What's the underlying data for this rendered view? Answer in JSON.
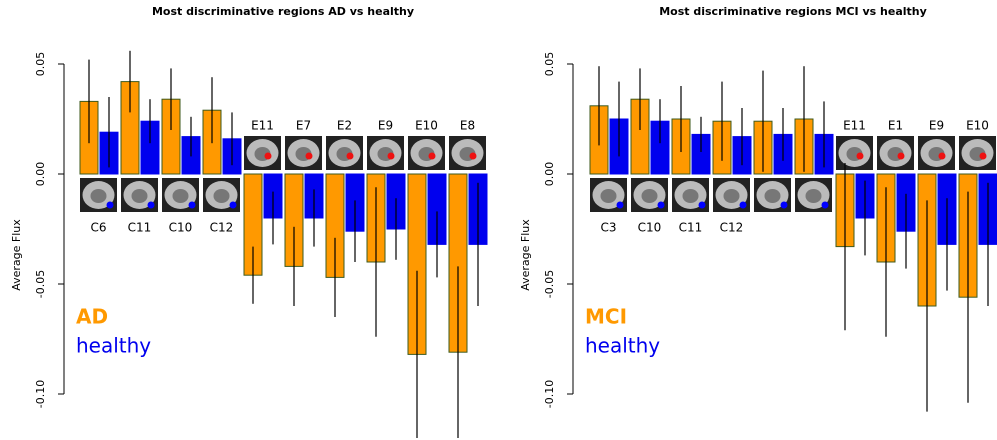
{
  "chart_data": [
    {
      "type": "bar",
      "title": "Most discriminative regions AD vs healthy",
      "ylabel": "Average Flux",
      "categories": [
        "C6",
        "C11",
        "C10",
        "C12",
        "E11",
        "E7",
        "E2",
        "E9",
        "E10",
        "E8"
      ],
      "series": [
        {
          "name": "AD",
          "color": "#ff9900",
          "values": [
            0.033,
            0.042,
            0.034,
            0.029,
            -0.046,
            -0.042,
            -0.047,
            -0.04,
            -0.082,
            -0.081
          ],
          "errors": [
            0.019,
            0.014,
            0.014,
            0.015,
            0.013,
            0.018,
            0.018,
            0.034,
            0.038,
            0.039
          ]
        },
        {
          "name": "healthy",
          "color": "#0000ee",
          "values": [
            0.019,
            0.024,
            0.017,
            0.016,
            -0.02,
            -0.02,
            -0.026,
            -0.025,
            -0.032,
            -0.032
          ],
          "errors": [
            0.016,
            0.01,
            0.009,
            0.012,
            0.012,
            0.013,
            0.014,
            0.014,
            0.015,
            0.028
          ]
        }
      ],
      "ylim": [
        -0.12,
        0.06
      ],
      "yticks": [
        0.05,
        {
          "value": 0,
          "label": "0.00"
        },
        -0.05,
        {
          "value": -0.1,
          "label": "-0.10"
        }
      ]
    },
    {
      "type": "bar",
      "title": "Most discriminative regions MCI vs healthy",
      "ylabel": "Average Flux",
      "categories": [
        "C3",
        "C10",
        "C11",
        "C12",
        null,
        null,
        "E11",
        "E1",
        "E9",
        "E10"
      ],
      "series": [
        {
          "name": "MCI",
          "color": "#ff9900",
          "values": [
            0.031,
            0.034,
            0.025,
            0.024,
            0.024,
            0.025,
            -0.033,
            -0.04,
            -0.06,
            -0.056
          ],
          "errors": [
            0.018,
            0.014,
            0.015,
            0.018,
            0.023,
            0.024,
            0.038,
            0.034,
            0.048,
            0.048
          ]
        },
        {
          "name": "healthy",
          "color": "#0000ee",
          "values": [
            0.025,
            0.024,
            0.018,
            0.017,
            0.018,
            0.018,
            -0.02,
            -0.026,
            -0.032,
            -0.032
          ],
          "errors": [
            0.017,
            0.01,
            0.008,
            0.013,
            0.012,
            0.015,
            0.017,
            0.017,
            0.021,
            0.028
          ]
        }
      ],
      "ylim": [
        -0.12,
        0.06
      ],
      "yticks": [
        0.05,
        {
          "value": 0,
          "label": "0.00"
        },
        -0.05,
        {
          "value": -0.1,
          "label": "-0.10"
        }
      ]
    }
  ]
}
